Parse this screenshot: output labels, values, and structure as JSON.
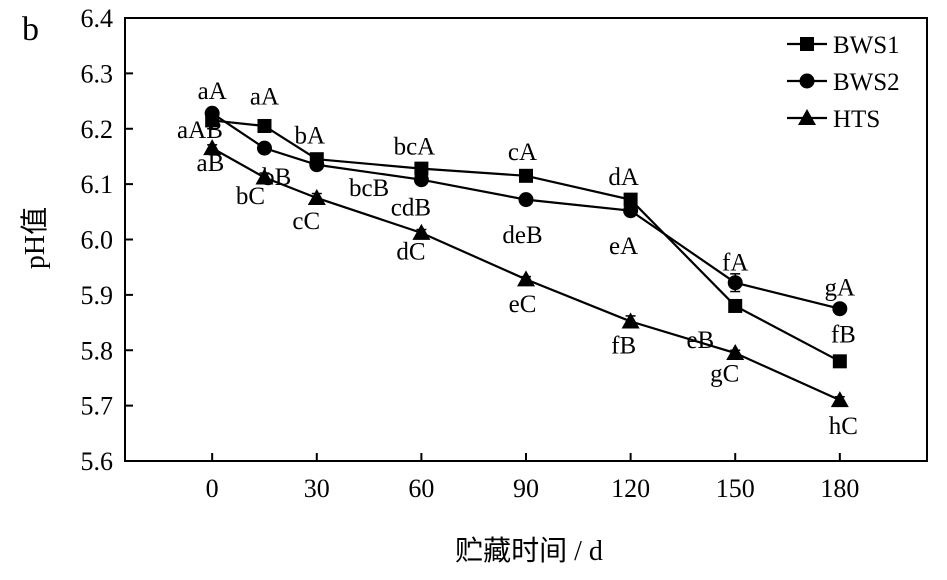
{
  "chart_data": {
    "type": "line",
    "panel_label": "b",
    "xlabel": "贮藏时间 / d",
    "ylabel": "pH值",
    "x": [
      0,
      15,
      30,
      60,
      90,
      120,
      150,
      180
    ],
    "x_ticks": [
      0,
      30,
      60,
      90,
      120,
      150,
      180
    ],
    "xlim": [
      -25,
      205
    ],
    "ylim": [
      5.6,
      6.4
    ],
    "y_ticks": [
      "5.6",
      "5.7",
      "5.8",
      "5.9",
      "6.0",
      "6.1",
      "6.2",
      "6.3",
      "6.4"
    ],
    "grid": false,
    "legend_position": "top-right",
    "series": [
      {
        "name": "BWS1",
        "marker": "square",
        "values": [
          6.215,
          6.205,
          6.145,
          6.128,
          6.115,
          6.072,
          5.88,
          5.78
        ],
        "errors": [
          0.015,
          0.006,
          0.006,
          0.005,
          0.004,
          0.006,
          0.008,
          0.006
        ]
      },
      {
        "name": "BWS2",
        "marker": "circle",
        "values": [
          6.228,
          6.165,
          6.135,
          6.108,
          6.072,
          6.052,
          5.922,
          5.875
        ],
        "errors": [
          0.008,
          0.006,
          0.006,
          0.005,
          0.005,
          0.005,
          0.016,
          0.006
        ]
      },
      {
        "name": "HTS",
        "marker": "triangle",
        "values": [
          6.165,
          6.112,
          6.075,
          6.012,
          5.928,
          5.852,
          5.795,
          5.71
        ],
        "errors": [
          0.006,
          0.008,
          0.008,
          0.006,
          0.005,
          0.01,
          0.005,
          0.006
        ]
      }
    ],
    "annotations": [
      {
        "text": "aA",
        "x": 0,
        "y": 6.27
      },
      {
        "text": "aAB",
        "x": -3.5,
        "y": 6.2
      },
      {
        "text": "aB",
        "x": -0.5,
        "y": 6.14
      },
      {
        "text": "aA",
        "x": 15,
        "y": 6.26
      },
      {
        "text": "bB",
        "x": 18.5,
        "y": 6.115
      },
      {
        "text": "bC",
        "x": 11,
        "y": 6.08
      },
      {
        "text": "bA",
        "x": 28,
        "y": 6.19
      },
      {
        "text": "bcB",
        "x": 45,
        "y": 6.095
      },
      {
        "text": "cC",
        "x": 27,
        "y": 6.035
      },
      {
        "text": "bcA",
        "x": 58,
        "y": 6.17
      },
      {
        "text": "cdB",
        "x": 57,
        "y": 6.06
      },
      {
        "text": "dC",
        "x": 57,
        "y": 5.98
      },
      {
        "text": "cA",
        "x": 89,
        "y": 6.16
      },
      {
        "text": "deB",
        "x": 89,
        "y": 6.01
      },
      {
        "text": "eC",
        "x": 89,
        "y": 5.885
      },
      {
        "text": "dA",
        "x": 118,
        "y": 6.115
      },
      {
        "text": "eA",
        "x": 118,
        "y": 5.99
      },
      {
        "text": "fB",
        "x": 118,
        "y": 5.81
      },
      {
        "text": "fA",
        "x": 150,
        "y": 5.96
      },
      {
        "text": "eB",
        "x": 140,
        "y": 5.82
      },
      {
        "text": "gC",
        "x": 147,
        "y": 5.76
      },
      {
        "text": "gA",
        "x": 180,
        "y": 5.915
      },
      {
        "text": "fB",
        "x": 181,
        "y": 5.83
      },
      {
        "text": "hC",
        "x": 181,
        "y": 5.665
      }
    ]
  }
}
